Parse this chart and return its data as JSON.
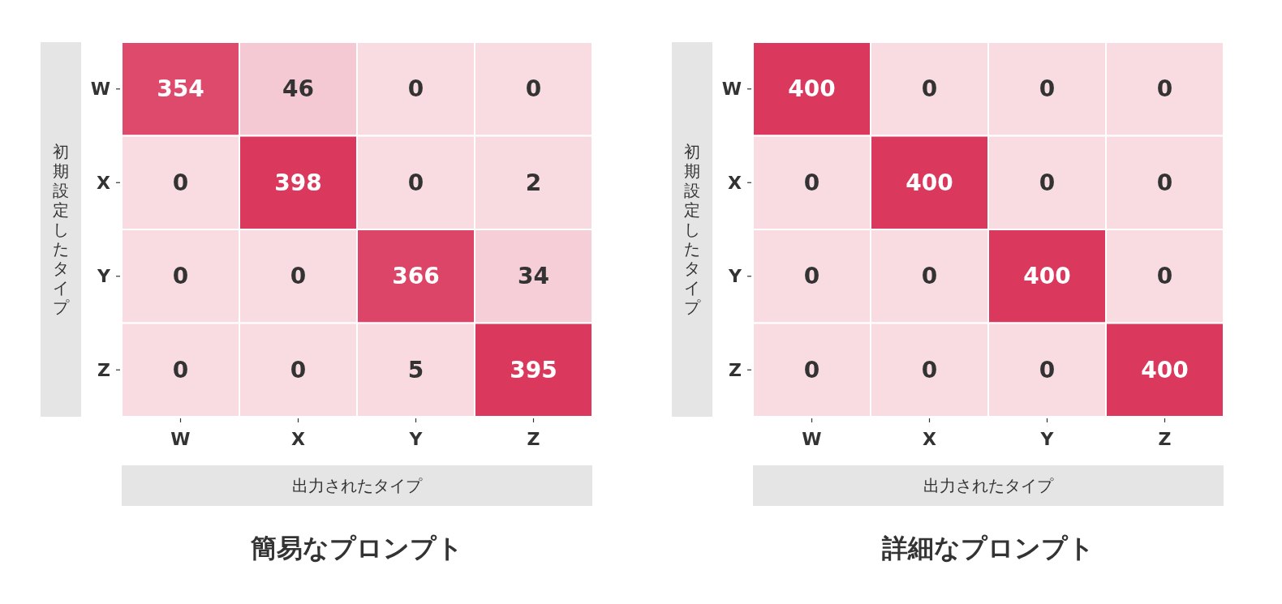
{
  "chart_data": [
    {
      "type": "heatmap",
      "title": "簡易なプロンプト",
      "xlabel": "出力されたタイプ",
      "ylabel": "初期設定したタイプ",
      "categories": [
        "W",
        "X",
        "Y",
        "Z"
      ],
      "y_categories": [
        "W",
        "X",
        "Y",
        "Z"
      ],
      "cells": [
        [
          354,
          46,
          0,
          0
        ],
        [
          0,
          398,
          0,
          2
        ],
        [
          0,
          0,
          366,
          34
        ],
        [
          0,
          0,
          5,
          395
        ]
      ],
      "data_labels": true
    },
    {
      "type": "heatmap",
      "title": "詳細なプロンプト",
      "xlabel": "出力されたタイプ",
      "ylabel": "初期設定したタイプ",
      "categories": [
        "W",
        "X",
        "Y",
        "Z"
      ],
      "y_categories": [
        "W",
        "X",
        "Y",
        "Z"
      ],
      "cells": [
        [
          400,
          0,
          0,
          0
        ],
        [
          0,
          400,
          0,
          0
        ],
        [
          0,
          0,
          400,
          0
        ],
        [
          0,
          0,
          0,
          400
        ]
      ],
      "data_labels": true
    }
  ]
}
